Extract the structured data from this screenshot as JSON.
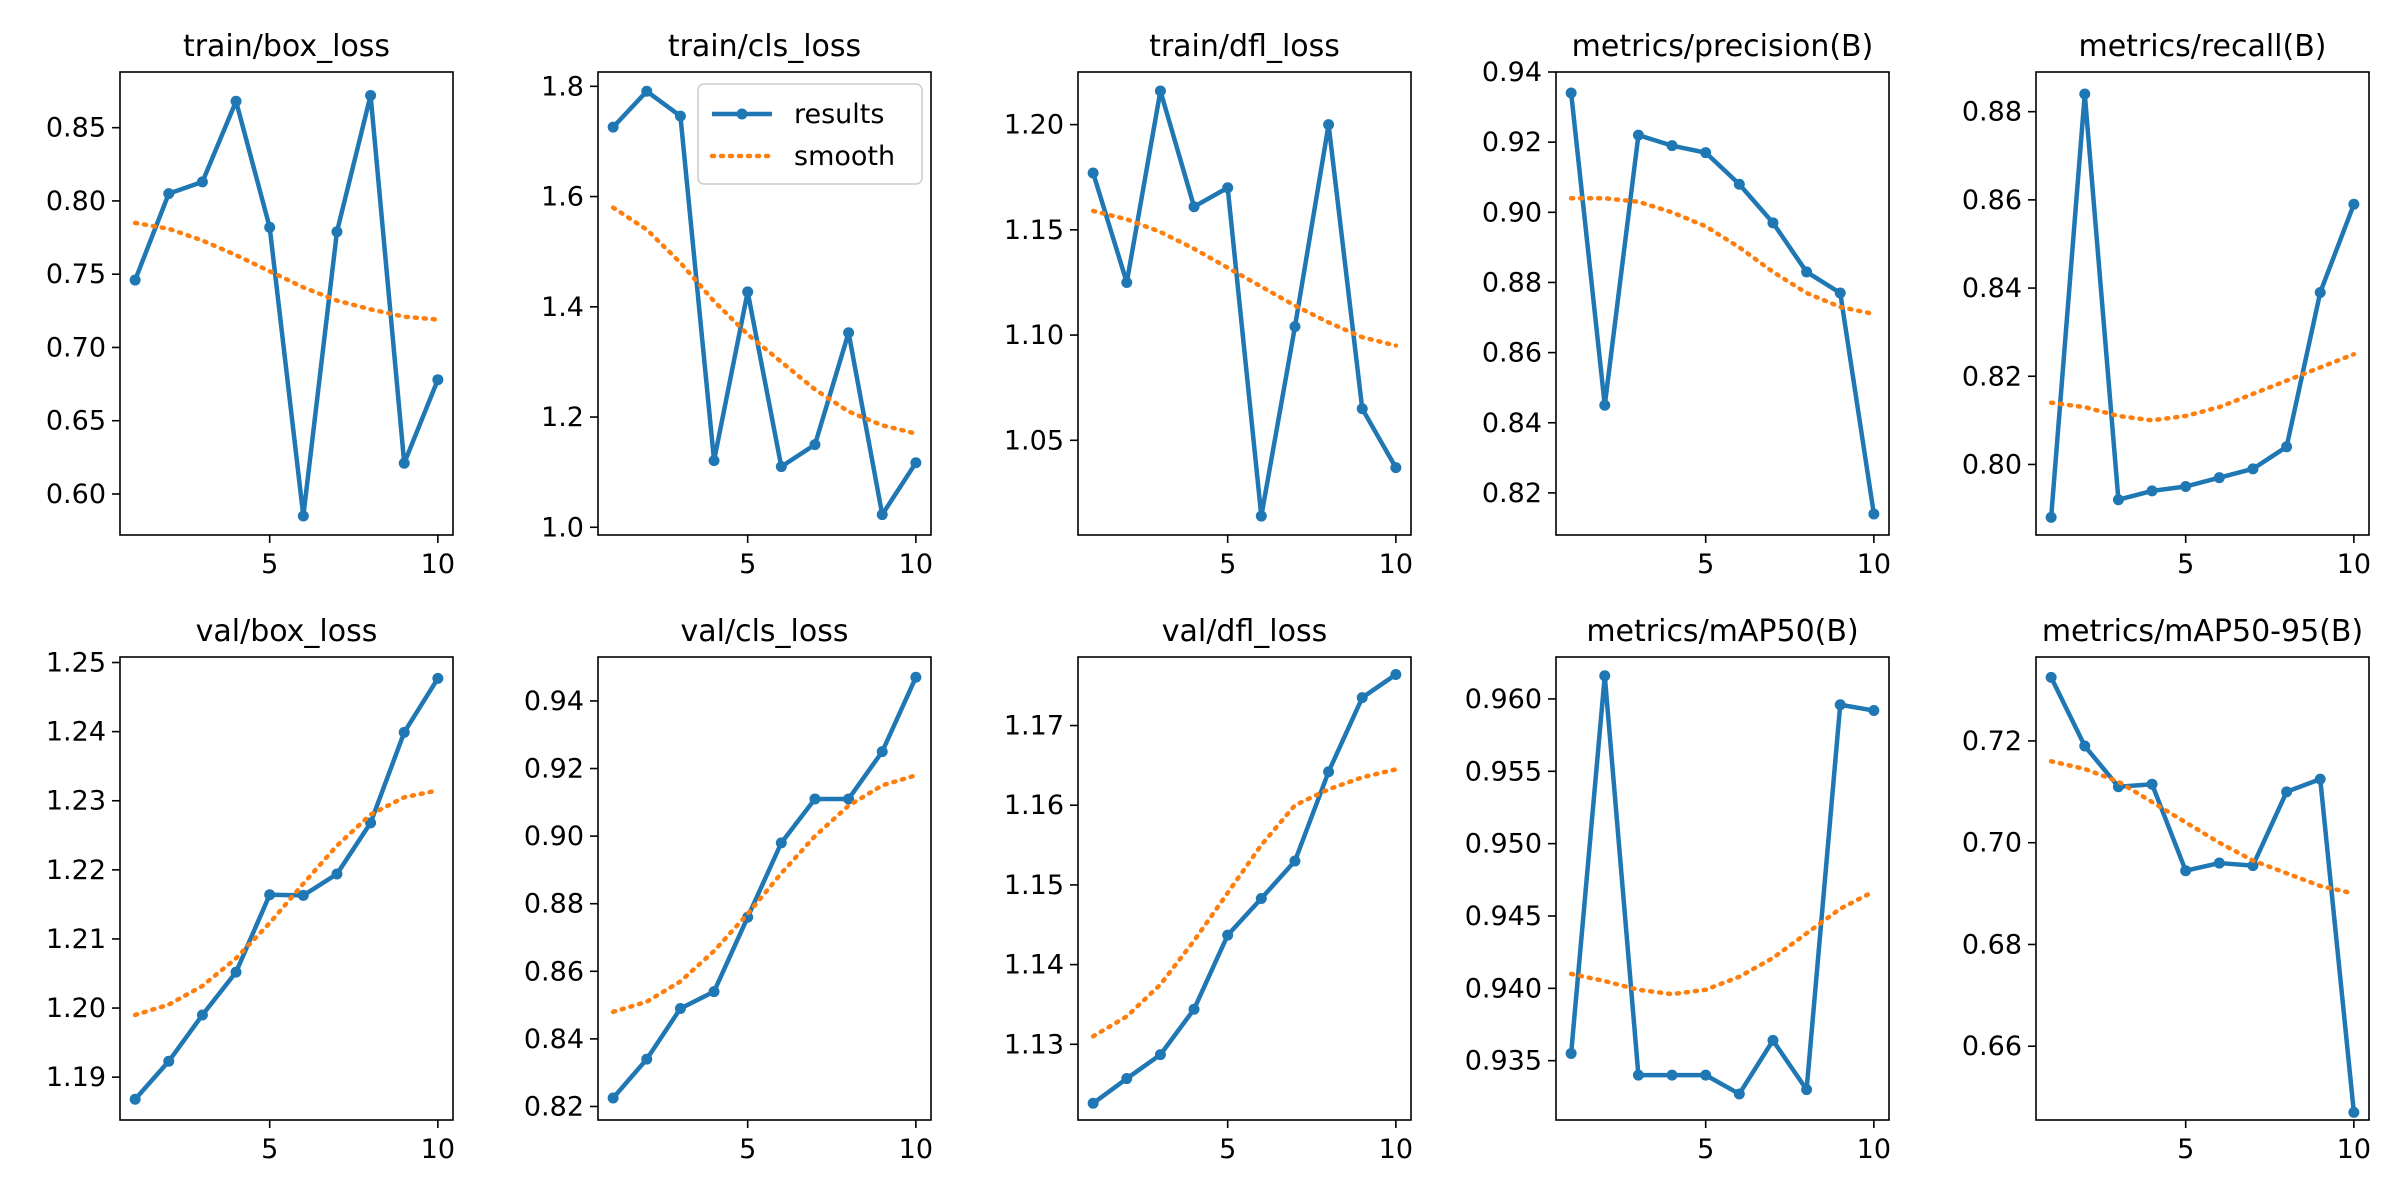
{
  "colors": {
    "results": "#1f77b4",
    "smooth": "#ff7f0e"
  },
  "legend": {
    "results_label": "results",
    "smooth_label": "smooth",
    "placement": "upper right of train/cls_loss panel"
  },
  "chart_data": [
    {
      "type": "line",
      "title": "train/box_loss",
      "x": [
        1,
        2,
        3,
        4,
        5,
        6,
        7,
        8,
        9,
        10
      ],
      "ylim": [
        0.572,
        0.888
      ],
      "yticks": [
        0.6,
        0.65,
        0.7,
        0.75,
        0.8,
        0.85
      ],
      "ytick_labels": [
        "0.60",
        "0.65",
        "0.70",
        "0.75",
        "0.80",
        "0.85"
      ],
      "xticks": [
        5,
        10
      ],
      "xtick_labels": [
        "5",
        "10"
      ],
      "series": [
        {
          "name": "results",
          "values": [
            0.746,
            0.805,
            0.813,
            0.868,
            0.782,
            0.585,
            0.779,
            0.872,
            0.621,
            0.678
          ]
        },
        {
          "name": "smooth",
          "values": [
            0.785,
            0.781,
            0.773,
            0.763,
            0.752,
            0.741,
            0.732,
            0.726,
            0.721,
            0.719
          ]
        }
      ]
    },
    {
      "type": "line",
      "title": "train/cls_loss",
      "x": [
        1,
        2,
        3,
        4,
        5,
        6,
        7,
        8,
        9,
        10
      ],
      "ylim": [
        0.986,
        1.826
      ],
      "yticks": [
        1.0,
        1.2,
        1.4,
        1.6,
        1.8
      ],
      "ytick_labels": [
        "1.0",
        "1.2",
        "1.4",
        "1.6",
        "1.8"
      ],
      "xticks": [
        5,
        10
      ],
      "xtick_labels": [
        "5",
        "10"
      ],
      "series": [
        {
          "name": "results",
          "values": [
            1.726,
            1.791,
            1.746,
            1.121,
            1.427,
            1.11,
            1.15,
            1.353,
            1.023,
            1.117
          ]
        },
        {
          "name": "smooth",
          "values": [
            1.58,
            1.54,
            1.48,
            1.41,
            1.35,
            1.3,
            1.25,
            1.21,
            1.185,
            1.17
          ]
        }
      ]
    },
    {
      "type": "line",
      "title": "train/dfl_loss",
      "x": [
        1,
        2,
        3,
        4,
        5,
        6,
        7,
        8,
        9,
        10
      ],
      "ylim": [
        1.005,
        1.225
      ],
      "yticks": [
        1.05,
        1.1,
        1.15,
        1.2
      ],
      "ytick_labels": [
        "1.05",
        "1.10",
        "1.15",
        "1.20"
      ],
      "xticks": [
        5,
        10
      ],
      "xtick_labels": [
        "5",
        "10"
      ],
      "series": [
        {
          "name": "results",
          "values": [
            1.177,
            1.125,
            1.216,
            1.161,
            1.17,
            1.014,
            1.104,
            1.2,
            1.065,
            1.037
          ]
        },
        {
          "name": "smooth",
          "values": [
            1.159,
            1.155,
            1.149,
            1.141,
            1.132,
            1.123,
            1.114,
            1.106,
            1.099,
            1.095
          ]
        }
      ]
    },
    {
      "type": "line",
      "title": "metrics/precision(B)",
      "x": [
        1,
        2,
        3,
        4,
        5,
        6,
        7,
        8,
        9,
        10
      ],
      "ylim": [
        0.808,
        0.94
      ],
      "yticks": [
        0.82,
        0.84,
        0.86,
        0.88,
        0.9,
        0.92,
        0.94
      ],
      "ytick_labels": [
        "0.82",
        "0.84",
        "0.86",
        "0.88",
        "0.90",
        "0.92",
        "0.94"
      ],
      "xticks": [
        5,
        10
      ],
      "xtick_labels": [
        "5",
        "10"
      ],
      "series": [
        {
          "name": "results",
          "values": [
            0.934,
            0.845,
            0.922,
            0.919,
            0.917,
            0.908,
            0.897,
            0.883,
            0.877,
            0.814
          ]
        },
        {
          "name": "smooth",
          "values": [
            0.904,
            0.904,
            0.903,
            0.9,
            0.896,
            0.89,
            0.883,
            0.877,
            0.873,
            0.871
          ]
        }
      ]
    },
    {
      "type": "line",
      "title": "metrics/recall(B)",
      "x": [
        1,
        2,
        3,
        4,
        5,
        6,
        7,
        8,
        9,
        10
      ],
      "ylim": [
        0.784,
        0.889
      ],
      "yticks": [
        0.8,
        0.82,
        0.84,
        0.86,
        0.88
      ],
      "ytick_labels": [
        "0.80",
        "0.82",
        "0.84",
        "0.86",
        "0.88"
      ],
      "xticks": [
        5,
        10
      ],
      "xtick_labels": [
        "5",
        "10"
      ],
      "series": [
        {
          "name": "results",
          "values": [
            0.788,
            0.884,
            0.792,
            0.794,
            0.795,
            0.797,
            0.799,
            0.804,
            0.839,
            0.859
          ]
        },
        {
          "name": "smooth",
          "values": [
            0.814,
            0.813,
            0.811,
            0.81,
            0.811,
            0.813,
            0.816,
            0.819,
            0.822,
            0.825
          ]
        }
      ]
    },
    {
      "type": "line",
      "title": "val/box_loss",
      "x": [
        1,
        2,
        3,
        4,
        5,
        6,
        7,
        8,
        9,
        10
      ],
      "ylim": [
        1.1838,
        1.2508
      ],
      "yticks": [
        1.19,
        1.2,
        1.21,
        1.22,
        1.23,
        1.24,
        1.25
      ],
      "ytick_labels": [
        "1.19",
        "1.20",
        "1.21",
        "1.22",
        "1.23",
        "1.24",
        "1.25"
      ],
      "xticks": [
        5,
        10
      ],
      "xtick_labels": [
        "5",
        "10"
      ],
      "series": [
        {
          "name": "results",
          "values": [
            1.1868,
            1.1923,
            1.199,
            1.2052,
            1.2164,
            1.2163,
            1.2194,
            1.2268,
            1.2399,
            1.2477
          ]
        },
        {
          "name": "smooth",
          "values": [
            1.199,
            1.2005,
            1.2032,
            1.2072,
            1.2123,
            1.218,
            1.2235,
            1.228,
            1.2305,
            1.2315
          ]
        }
      ]
    },
    {
      "type": "line",
      "title": "val/cls_loss",
      "x": [
        1,
        2,
        3,
        4,
        5,
        6,
        7,
        8,
        9,
        10
      ],
      "ylim": [
        0.816,
        0.953
      ],
      "yticks": [
        0.82,
        0.84,
        0.86,
        0.88,
        0.9,
        0.92,
        0.94
      ],
      "ytick_labels": [
        "0.82",
        "0.84",
        "0.86",
        "0.88",
        "0.90",
        "0.92",
        "0.94"
      ],
      "xticks": [
        5,
        10
      ],
      "xtick_labels": [
        "5",
        "10"
      ],
      "series": [
        {
          "name": "results",
          "values": [
            0.8225,
            0.834,
            0.849,
            0.854,
            0.876,
            0.898,
            0.911,
            0.911,
            0.925,
            0.947
          ]
        },
        {
          "name": "smooth",
          "values": [
            0.848,
            0.851,
            0.857,
            0.866,
            0.877,
            0.889,
            0.9,
            0.909,
            0.915,
            0.918
          ]
        }
      ]
    },
    {
      "type": "line",
      "title": "val/dfl_loss",
      "x": [
        1,
        2,
        3,
        4,
        5,
        6,
        7,
        8,
        9,
        10
      ],
      "ylim": [
        1.1205,
        1.1786
      ],
      "yticks": [
        1.13,
        1.14,
        1.15,
        1.16,
        1.17
      ],
      "ytick_labels": [
        "1.13",
        "1.14",
        "1.15",
        "1.16",
        "1.17"
      ],
      "xticks": [
        5,
        10
      ],
      "xtick_labels": [
        "5",
        "10"
      ],
      "series": [
        {
          "name": "results",
          "values": [
            1.1226,
            1.1257,
            1.1287,
            1.1344,
            1.1437,
            1.1483,
            1.153,
            1.1642,
            1.1735,
            1.1764
          ]
        },
        {
          "name": "smooth",
          "values": [
            1.131,
            1.1335,
            1.1375,
            1.143,
            1.149,
            1.155,
            1.16,
            1.162,
            1.1635,
            1.1645
          ]
        }
      ]
    },
    {
      "type": "line",
      "title": "metrics/mAP50(B)",
      "x": [
        1,
        2,
        3,
        4,
        5,
        6,
        7,
        8,
        9,
        10
      ],
      "ylim": [
        0.9309,
        0.9629
      ],
      "yticks": [
        0.935,
        0.94,
        0.945,
        0.95,
        0.955,
        0.96
      ],
      "ytick_labels": [
        "0.935",
        "0.940",
        "0.945",
        "0.950",
        "0.955",
        "0.960"
      ],
      "xticks": [
        5,
        10
      ],
      "xtick_labels": [
        "5",
        "10"
      ],
      "series": [
        {
          "name": "results",
          "values": [
            0.9355,
            0.9616,
            0.934,
            0.934,
            0.934,
            0.9327,
            0.9364,
            0.933,
            0.9596,
            0.9592
          ]
        },
        {
          "name": "smooth",
          "values": [
            0.941,
            0.9405,
            0.9399,
            0.9396,
            0.9399,
            0.9408,
            0.9421,
            0.9438,
            0.9455,
            0.9467
          ]
        }
      ]
    },
    {
      "type": "line",
      "title": "metrics/mAP50-95(B)",
      "x": [
        1,
        2,
        3,
        4,
        5,
        6,
        7,
        8,
        9,
        10
      ],
      "ylim": [
        0.6455,
        0.7365
      ],
      "yticks": [
        0.66,
        0.68,
        0.7,
        0.72
      ],
      "ytick_labels": [
        "0.66",
        "0.68",
        "0.70",
        "0.72"
      ],
      "xticks": [
        5,
        10
      ],
      "xtick_labels": [
        "5",
        "10"
      ],
      "series": [
        {
          "name": "results",
          "values": [
            0.7325,
            0.719,
            0.711,
            0.7115,
            0.6945,
            0.696,
            0.6955,
            0.71,
            0.7125,
            0.647
          ]
        },
        {
          "name": "smooth",
          "values": [
            0.716,
            0.7145,
            0.712,
            0.708,
            0.704,
            0.7,
            0.6965,
            0.694,
            0.6915,
            0.69
          ]
        }
      ]
    }
  ]
}
